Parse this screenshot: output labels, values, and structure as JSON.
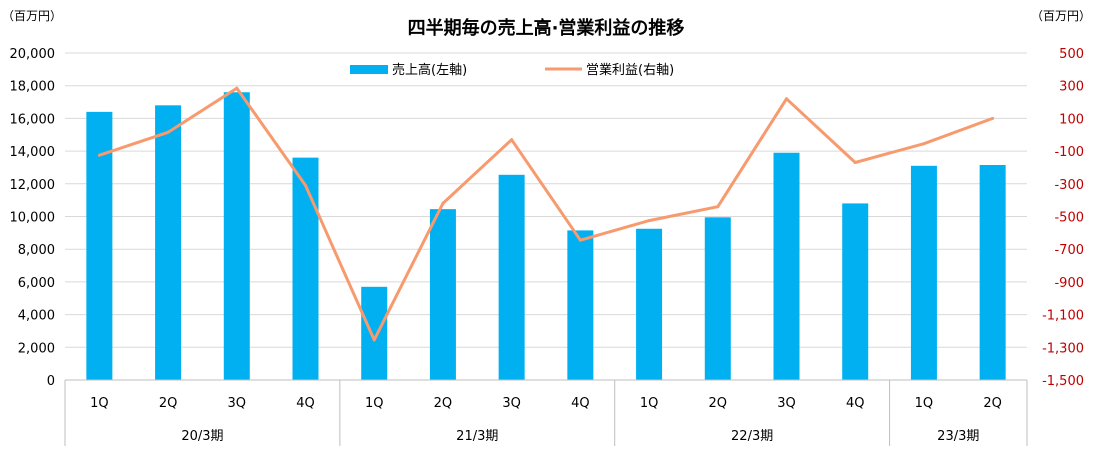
{
  "chart_data": {
    "type": "bar",
    "title": "四半期毎の売上高·営業利益の推移",
    "unit_left": "（百万円）",
    "unit_right": "（百万円）",
    "categories": [
      "1Q",
      "2Q",
      "3Q",
      "4Q",
      "1Q",
      "2Q",
      "3Q",
      "4Q",
      "1Q",
      "2Q",
      "3Q",
      "4Q",
      "1Q",
      "2Q"
    ],
    "category_groups": [
      {
        "label": "20/3期",
        "count": 4
      },
      {
        "label": "21/3期",
        "count": 4
      },
      {
        "label": "22/3期",
        "count": 4
      },
      {
        "label": "23/3期",
        "count": 2
      }
    ],
    "series": [
      {
        "name": "売上高(左軸)",
        "type": "bar",
        "axis": "left",
        "color": "#00b0f0",
        "values": [
          16400,
          16800,
          17600,
          13600,
          5700,
          10450,
          12550,
          9150,
          9250,
          9950,
          13900,
          10800,
          13100,
          13150
        ]
      },
      {
        "name": "営業利益(右軸)",
        "type": "line",
        "axis": "right",
        "color": "#f79a6e",
        "values": [
          -125,
          15,
          285,
          -310,
          -1255,
          -420,
          -30,
          -645,
          -525,
          -440,
          220,
          -170,
          -55,
          100
        ]
      }
    ],
    "left_axis": {
      "ylim": [
        0,
        20000
      ],
      "ticks": [
        0,
        2000,
        4000,
        6000,
        8000,
        10000,
        12000,
        14000,
        16000,
        18000,
        20000
      ],
      "tick_labels": [
        "0",
        "2,000",
        "4,000",
        "6,000",
        "8,000",
        "10,000",
        "12,000",
        "14,000",
        "16,000",
        "18,000",
        "20,000"
      ]
    },
    "right_axis": {
      "ylim": [
        -1500,
        500
      ],
      "ticks": [
        500,
        300,
        100,
        -100,
        -300,
        -500,
        -700,
        -900,
        -1100,
        -1300,
        -1500
      ],
      "tick_labels": [
        "500",
        "300",
        "100",
        "-100",
        "-300",
        "-500",
        "-700",
        "-900",
        "-1,100",
        "-1,300",
        "-1,500"
      ],
      "label_color": "#c00000"
    },
    "grid": true,
    "legend_position": "top"
  }
}
